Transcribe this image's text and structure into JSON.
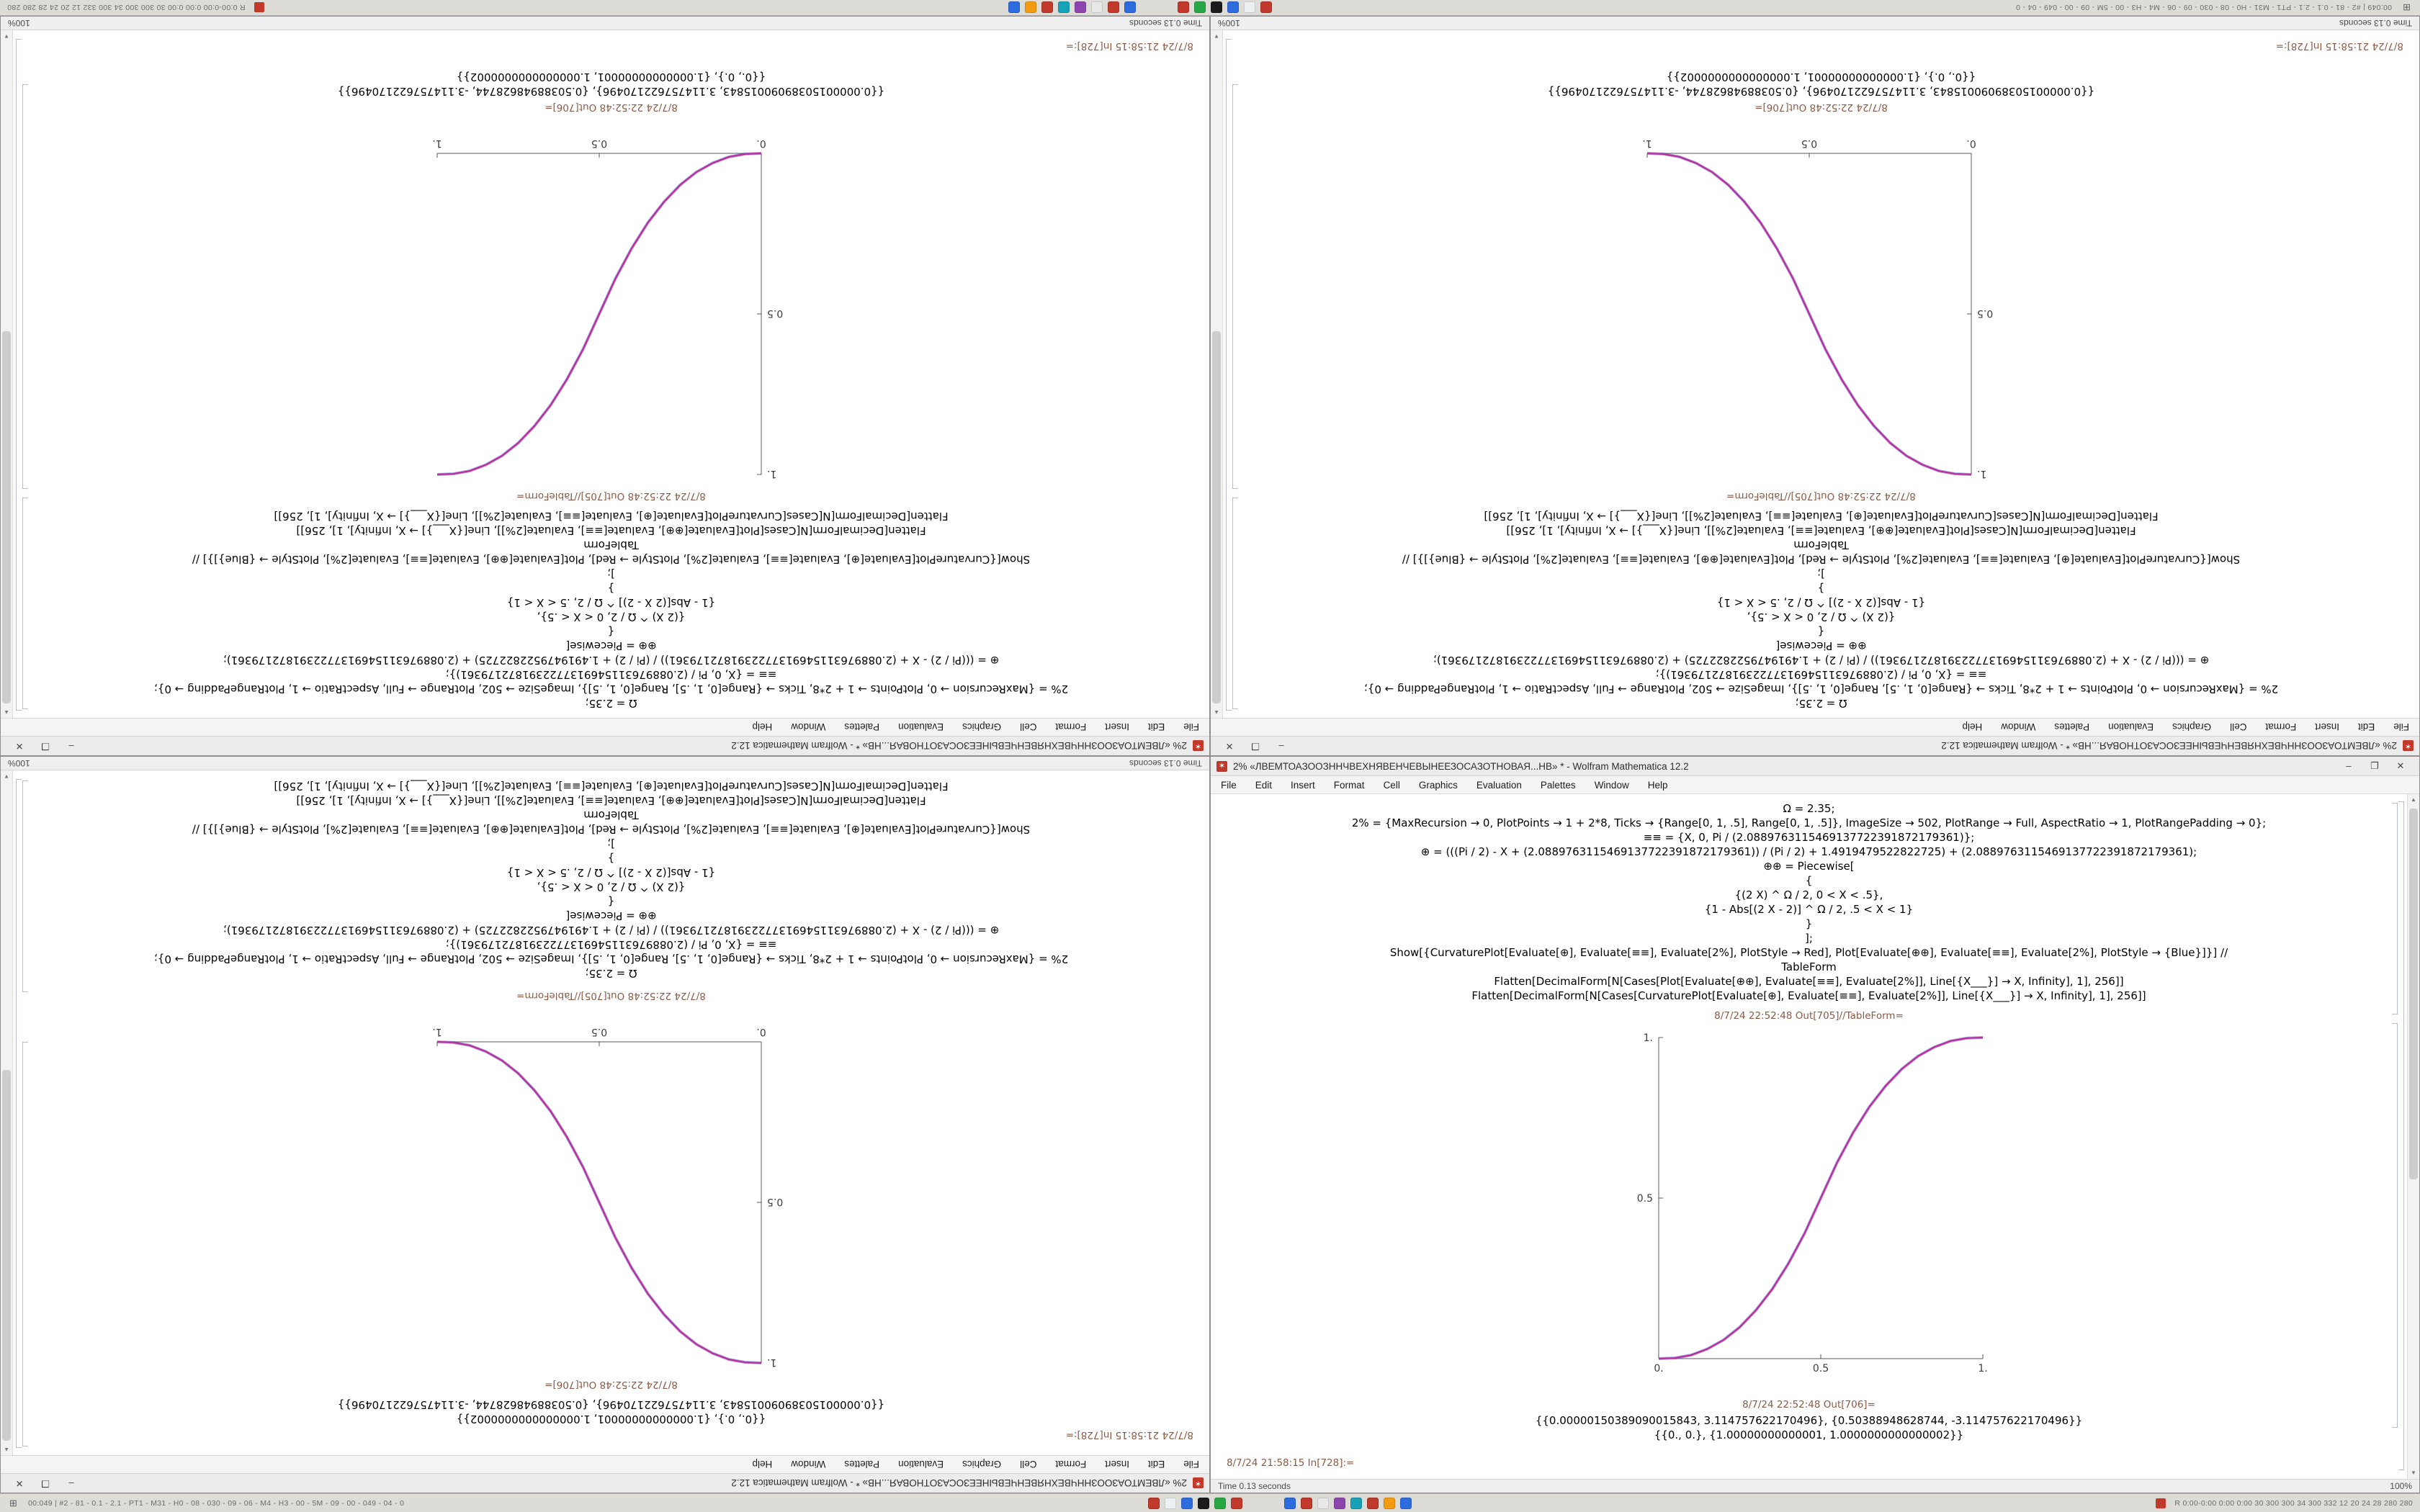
{
  "window": {
    "title": "2% «ЛВЕМТОАЗООЗННЧВЕХНЯВЕНЧЕВЫНЕЕЗОСАЗОТНОВАЯ...НВ» * - Wolfram Mathematica 12.2",
    "menus": [
      "File",
      "Edit",
      "Insert",
      "Format",
      "Cell",
      "Graphics",
      "Evaluation",
      "Palettes",
      "Window",
      "Help"
    ],
    "buttons": {
      "min": "–",
      "max": "❐",
      "close": "✕"
    },
    "status_time": "Time 0.13 seconds",
    "zoom": "100%"
  },
  "icons": {
    "spikey": "✶",
    "start": "⊞",
    "scroll_up": "▲",
    "scroll_down": "▼"
  },
  "notebook": {
    "code_lines": [
      "Ω = 2.35;",
      "2% = {MaxRecursion → 0, PlotPoints → 1 + 2*8, Ticks → {Range[0, 1, .5], Range[0, 1, .5]}, ImageSize → 502, PlotRange → Full, AspectRatio → 1, PlotRangePadding → 0};",
      "≡≡ = {X, 0, Pi / (2.0889763115469137722391872179361)};",
      "⊕ = (((Pi / 2) - X + (2.0889763115469137722391872179361)) / (Pi / 2) + 1.4919479522822725) + (2.0889763115469137722391872179361);",
      "⊕⊕ = Piecewise[",
      "{",
      "{(2 X) ^ Ω / 2, 0 < X < .5},",
      "{1 - Abs[(2 X - 2)] ^ Ω / 2, .5 < X < 1}",
      "}",
      "];",
      "Show[{CurvaturePlot[Evaluate[⊕], Evaluate[≡≡], Evaluate[2%], PlotStyle → Red], Plot[Evaluate[⊕⊕], Evaluate[≡≡], Evaluate[2%], PlotStyle → {Blue}]}] //",
      "TableForm",
      "Flatten[DecimalForm[N[Cases[Plot[Evaluate[⊕⊕], Evaluate[≡≡], Evaluate[2%]], Line[{X___}] → X, Infinity], 1], 256]]",
      "Flatten[DecimalForm[N[Cases[CurvaturePlot[Evaluate[⊕], Evaluate[≡≡], Evaluate[2%]], Line[{X___}] → X, Infinity], 1], 256]]"
    ],
    "out_table_label": "8/7/24 22:52:48 Out[705]//TableForm=",
    "out_label": "8/7/24 22:52:48 Out[706]=",
    "output_line1": "{{0.00000150389090015843, 3.114757622170496}, {0.50388948628744, -3.114757622170496}}",
    "output_line2": "{{0., 0.}, {1.00000000000001, 1.0000000000000002}}",
    "in_label": "8/7/24 21:58:15 In[728]:="
  },
  "taskbar": {
    "left_stats": "00:049 | #2 - 81 - 0.1 - 2.1 - PT1 - M31 - H0 - 08 - 030 - 09 - 06 - M4 - H3 - 00 - 5M - 09 - 00 - 049 - 04 - 0",
    "tray_stats": "R 0:00-0:00 0:00 0:00 30 300 300 34 300 332 12 20 24 28 280 280",
    "icon_colors_left": [
      "#c0392b",
      "#ecf0f1",
      "#2d6cdf",
      "#1b1b1b",
      "#27a844",
      "#c0392b"
    ],
    "icon_colors_right": [
      "#2d6cdf",
      "#c0392b",
      "#e8e8e8",
      "#8e44ad",
      "#17a2b8",
      "#c0392b",
      "#f39c12",
      "#2d6cdf"
    ]
  },
  "chart_data": [
    {
      "id": "s_curve_up",
      "type": "line",
      "title": "",
      "xlabel": "",
      "ylabel": "",
      "series_name": "Show: CurvaturePlot (Red) + Plot (Blue), piecewise S-curve, Ω = 2.35",
      "xlim": [
        0,
        1
      ],
      "ylim": [
        0,
        1
      ],
      "xtick_values": [
        0,
        0.5,
        1
      ],
      "xtick_labels": [
        "0.",
        "0.5",
        "1."
      ],
      "ytick_values": [
        0.5,
        1
      ],
      "ytick_labels": [
        "0.5",
        "1."
      ],
      "grid": false,
      "legend": "none",
      "colors": [
        "#4a4fd0",
        "#bf2f9a"
      ],
      "points": [
        [
          0,
          0
        ],
        [
          0.05,
          0.002
        ],
        [
          0.1,
          0.011
        ],
        [
          0.15,
          0.03
        ],
        [
          0.2,
          0.058
        ],
        [
          0.25,
          0.098
        ],
        [
          0.3,
          0.151
        ],
        [
          0.35,
          0.216
        ],
        [
          0.4,
          0.296
        ],
        [
          0.45,
          0.39
        ],
        [
          0.5,
          0.5
        ],
        [
          0.55,
          0.61
        ],
        [
          0.6,
          0.704
        ],
        [
          0.65,
          0.784
        ],
        [
          0.7,
          0.849
        ],
        [
          0.75,
          0.902
        ],
        [
          0.8,
          0.942
        ],
        [
          0.85,
          0.97
        ],
        [
          0.9,
          0.989
        ],
        [
          0.95,
          0.998
        ],
        [
          1,
          1
        ]
      ]
    },
    {
      "id": "s_curve_down",
      "type": "line",
      "title": "",
      "xlabel": "",
      "ylabel": "",
      "series_name": "Show: CurvaturePlot (Red) + Plot (Blue), descending piecewise S-curve, Ω = 2.35",
      "xlim": [
        0,
        1
      ],
      "ylim": [
        0,
        1
      ],
      "xtick_values": [
        0,
        0.5,
        1
      ],
      "xtick_labels": [
        "0.",
        "0.5",
        "1."
      ],
      "ytick_values": [
        0.5,
        1
      ],
      "ytick_labels": [
        "0.5",
        "1."
      ],
      "grid": false,
      "legend": "none",
      "colors": [
        "#4a4fd0",
        "#bf2f9a"
      ],
      "points": [
        [
          0,
          1
        ],
        [
          0.05,
          0.998
        ],
        [
          0.1,
          0.989
        ],
        [
          0.15,
          0.97
        ],
        [
          0.2,
          0.942
        ],
        [
          0.25,
          0.902
        ],
        [
          0.3,
          0.849
        ],
        [
          0.35,
          0.784
        ],
        [
          0.4,
          0.704
        ],
        [
          0.45,
          0.61
        ],
        [
          0.5,
          0.5
        ],
        [
          0.55,
          0.39
        ],
        [
          0.6,
          0.296
        ],
        [
          0.65,
          0.216
        ],
        [
          0.7,
          0.151
        ],
        [
          0.75,
          0.098
        ],
        [
          0.8,
          0.058
        ],
        [
          0.85,
          0.03
        ],
        [
          0.9,
          0.011
        ],
        [
          0.95,
          0.002
        ],
        [
          1,
          0
        ]
      ]
    }
  ]
}
